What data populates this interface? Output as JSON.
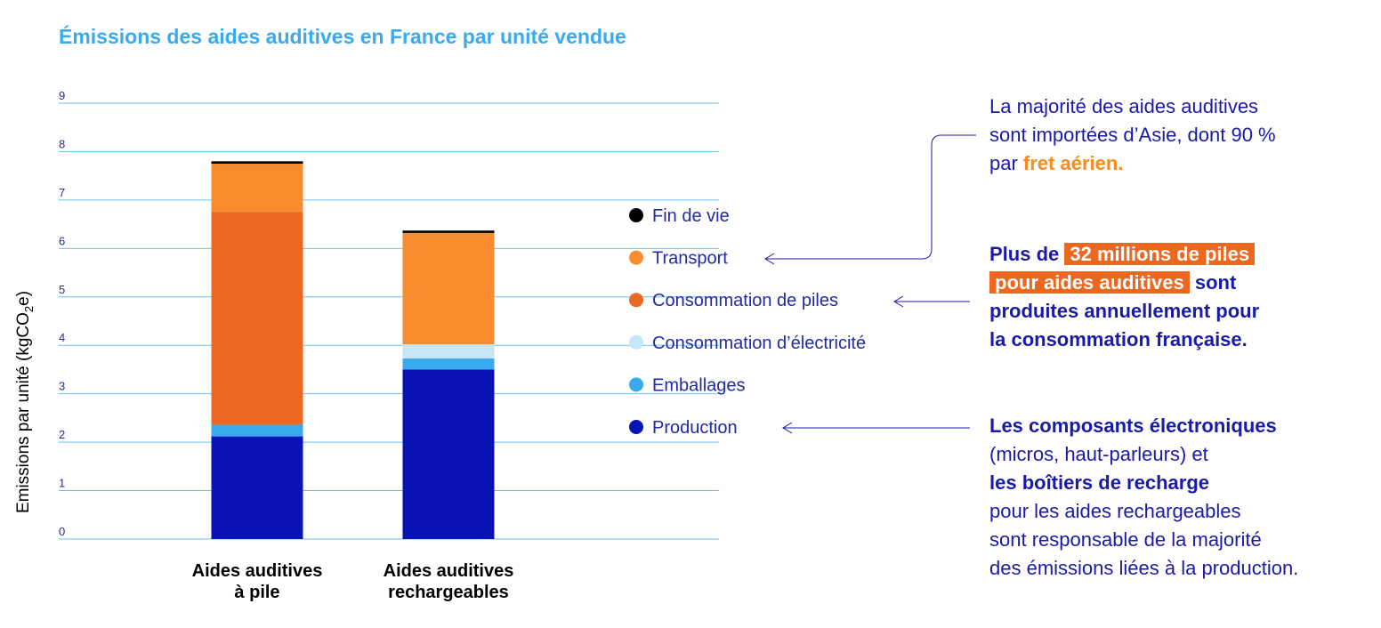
{
  "chart_data": {
    "type": "bar",
    "stacked": true,
    "title": "Émissions des aides auditives en France par unité vendue",
    "ylabel": "Emissions par unité (kgCO₂e)",
    "ylim": [
      0,
      9
    ],
    "yticks": [
      0,
      1,
      2,
      3,
      4,
      5,
      6,
      7,
      8,
      9
    ],
    "grid": true,
    "legend_position": "right",
    "categories": [
      [
        "Aides auditives",
        "à pile"
      ],
      [
        "Aides auditives",
        "rechargeables"
      ]
    ],
    "series": [
      {
        "name": "Production",
        "color": "#0a14b4",
        "values": [
          2.12,
          3.5
        ]
      },
      {
        "name": "Emballages",
        "color": "#3aaaf0",
        "values": [
          0.25,
          0.23
        ]
      },
      {
        "name": "Consommation d’électricité",
        "color": "#c6e6f9",
        "values": [
          0.0,
          0.29
        ]
      },
      {
        "name": "Consommation de piles",
        "color": "#ec6720",
        "values": [
          4.38,
          0.0
        ]
      },
      {
        "name": "Transport",
        "color": "#f78c2f",
        "values": [
          1.0,
          2.3
        ]
      },
      {
        "name": "Fin de vie",
        "color": "#000000",
        "values": [
          0.05,
          0.05
        ]
      }
    ],
    "legend_order": [
      "Fin de vie",
      "Transport",
      "Consommation de piles",
      "Consommation d’électricité",
      "Emballages",
      "Production"
    ]
  },
  "annotations": {
    "note1": {
      "line1": "La majorité des aides auditives",
      "line2": "sont importées d’Asie, dont 90 %",
      "line3_pre": "par ",
      "line3_emph": "fret aérien."
    },
    "note2": {
      "pre": "Plus de ",
      "hl1": "32 millions de piles",
      "hl2": "pour aides auditives",
      "post1": " sont",
      "line3": "produites annuellement pour",
      "line4": "la consommation française."
    },
    "note3": {
      "line1": "Les composants électroniques",
      "line2": "(micros, haut-parleurs) et",
      "line3": "les boîtiers de recharge",
      "line4": "pour les aides rechargeables",
      "line5": "sont responsable de la majorité",
      "line6": "des émissions liées à la production."
    }
  },
  "colors": {
    "title": "#3aaaf0",
    "text": "#1a1aa8",
    "accent": "#ec6720",
    "grid": "#6fbfec"
  }
}
